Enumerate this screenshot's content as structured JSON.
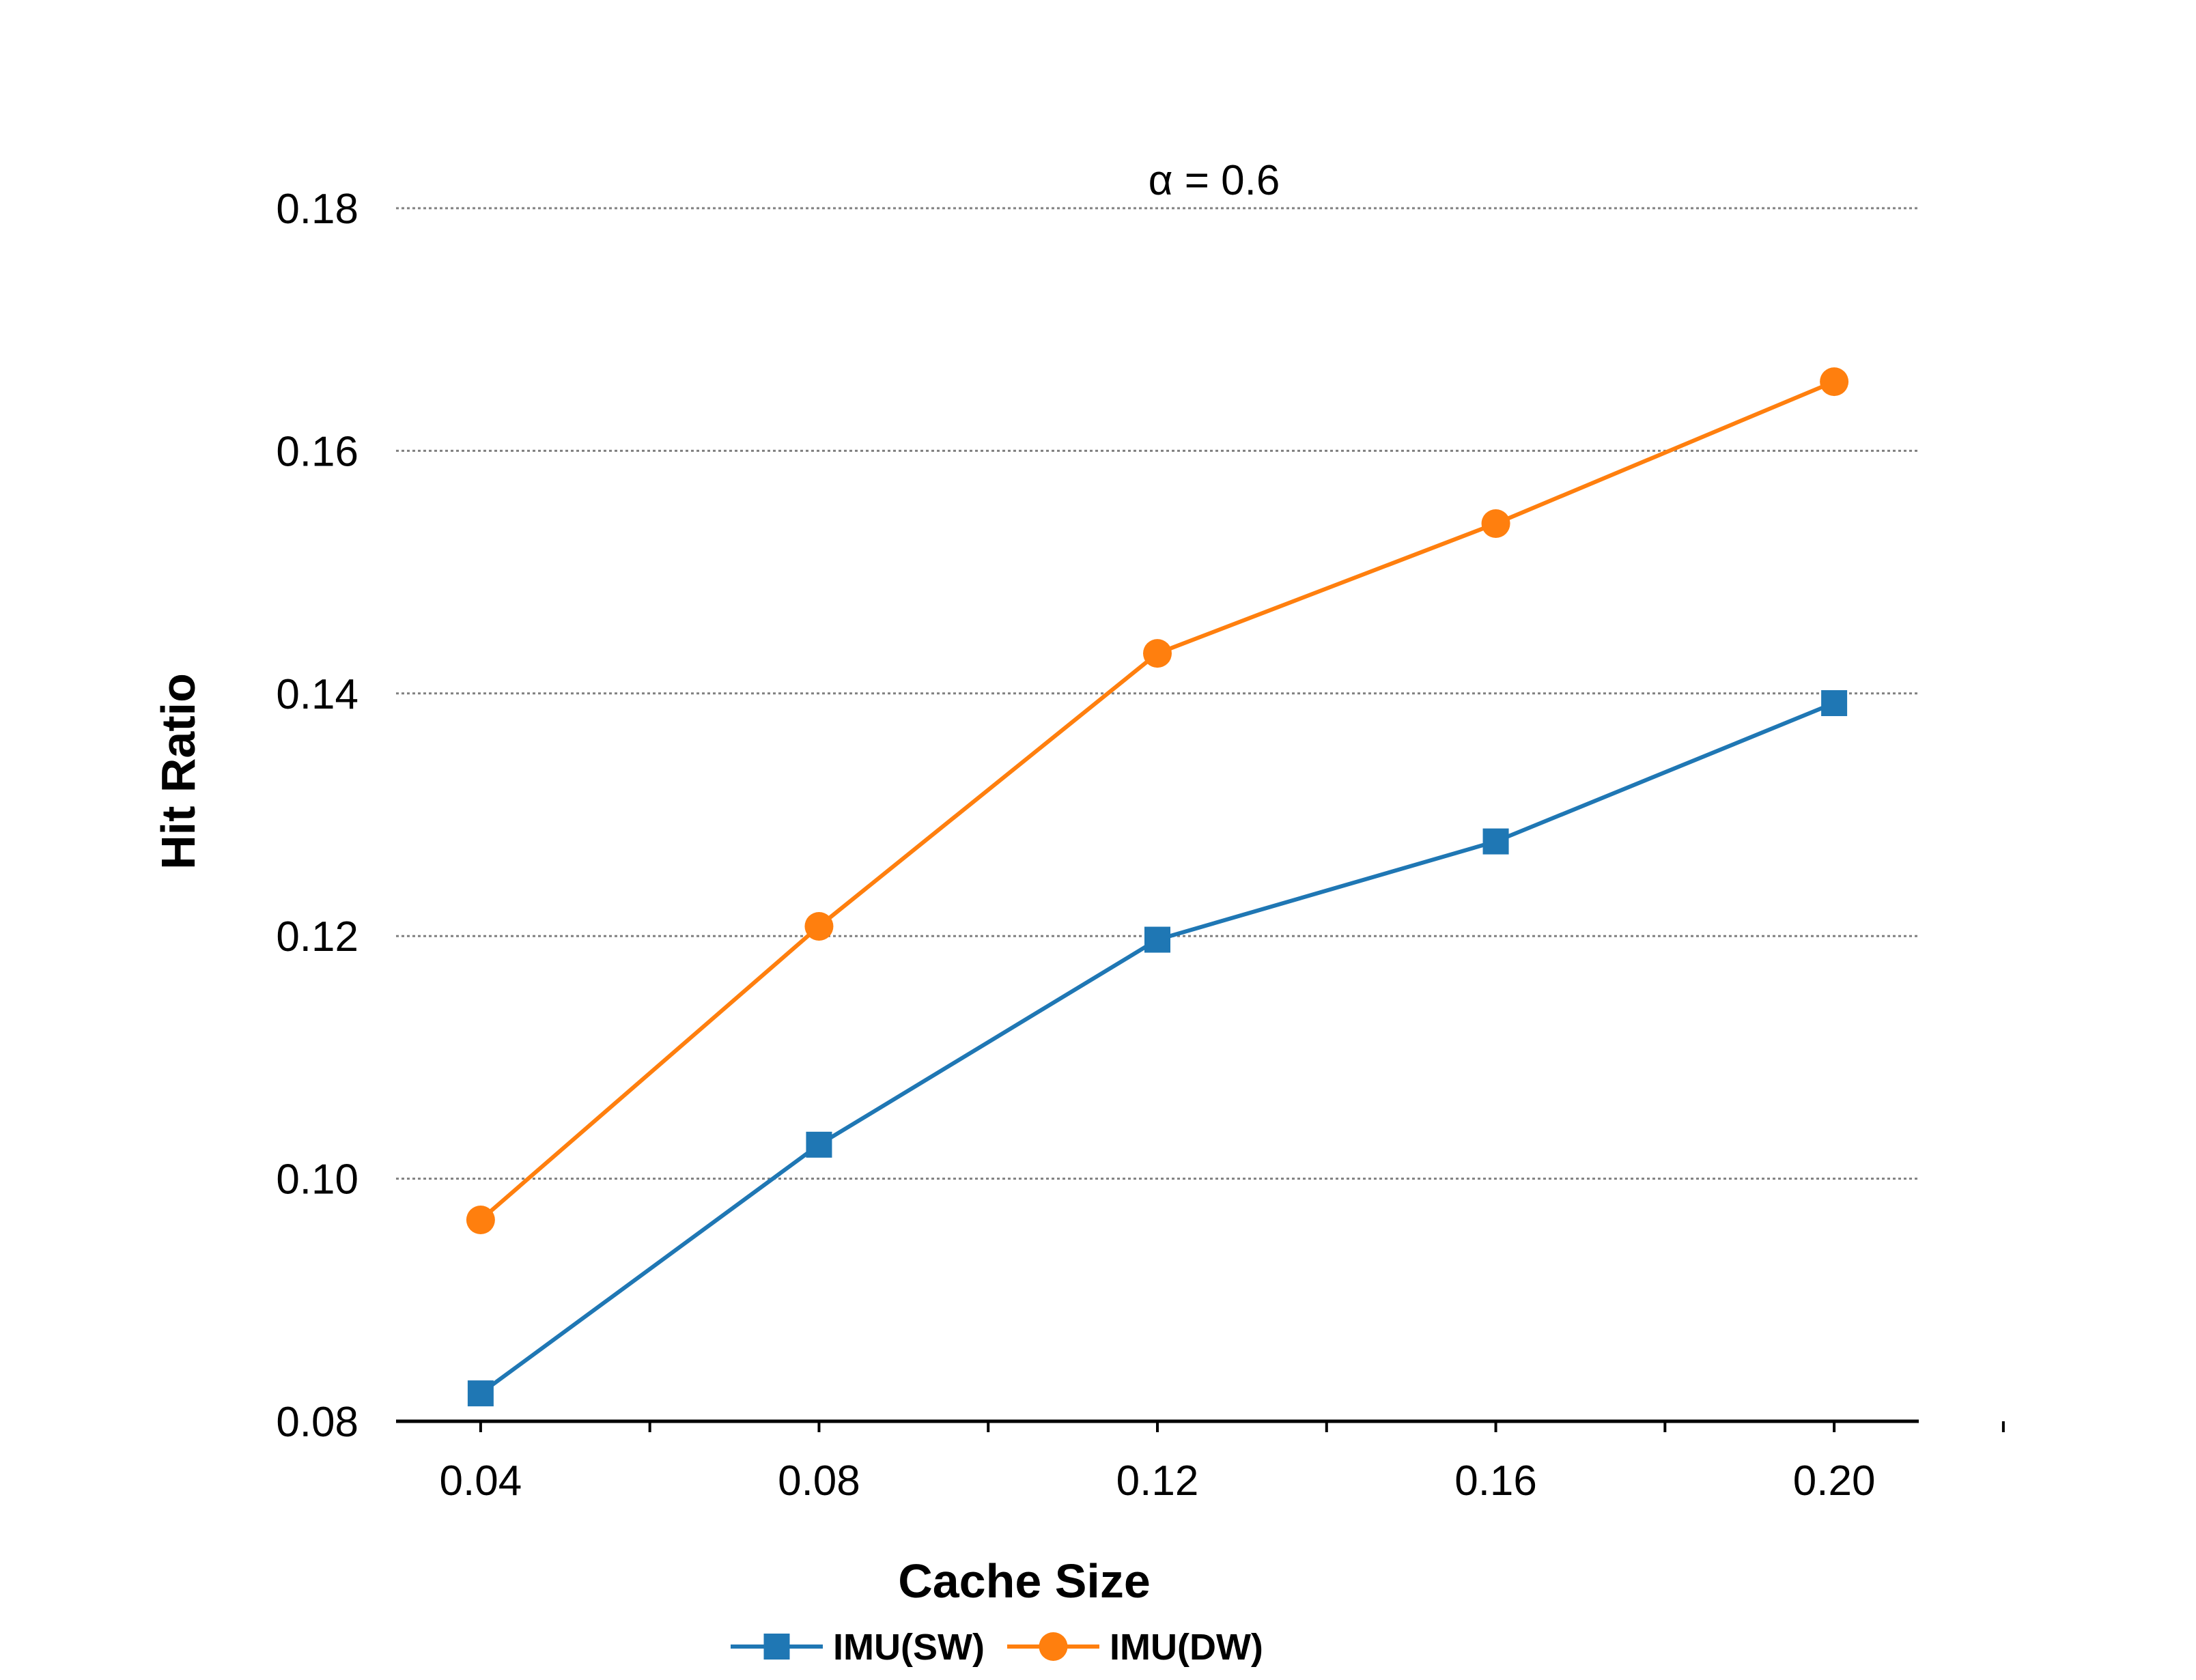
{
  "chart_data": {
    "type": "line",
    "annotation": "α = 0.6",
    "xlabel": "Cache Size",
    "ylabel": "Hit Ratio",
    "x": [
      0.04,
      0.08,
      0.12,
      0.16,
      0.2
    ],
    "x_tick_labels": [
      "0.04",
      "0.08",
      "0.12",
      "0.16",
      "0.20"
    ],
    "y_ticks": [
      0.08,
      0.1,
      0.12,
      0.14,
      0.16,
      0.18
    ],
    "y_tick_labels": [
      "0.08",
      "0.10",
      "0.12",
      "0.14",
      "0.16",
      "0.18"
    ],
    "xlim": [
      0.03,
      0.21
    ],
    "ylim": [
      0.08,
      0.18
    ],
    "grid": "horizontal dotted",
    "legend_position": "bottom-center",
    "series": [
      {
        "name": "IMU(SW)",
        "color": "#1f77b4",
        "marker": "square",
        "values": [
          0.0823,
          0.1028,
          0.1197,
          0.1278,
          0.1392
        ]
      },
      {
        "name": "IMU(DW)",
        "color": "#ff7f0e",
        "marker": "circle",
        "values": [
          0.0966,
          0.1208,
          0.1433,
          0.154,
          0.1657
        ]
      }
    ]
  }
}
